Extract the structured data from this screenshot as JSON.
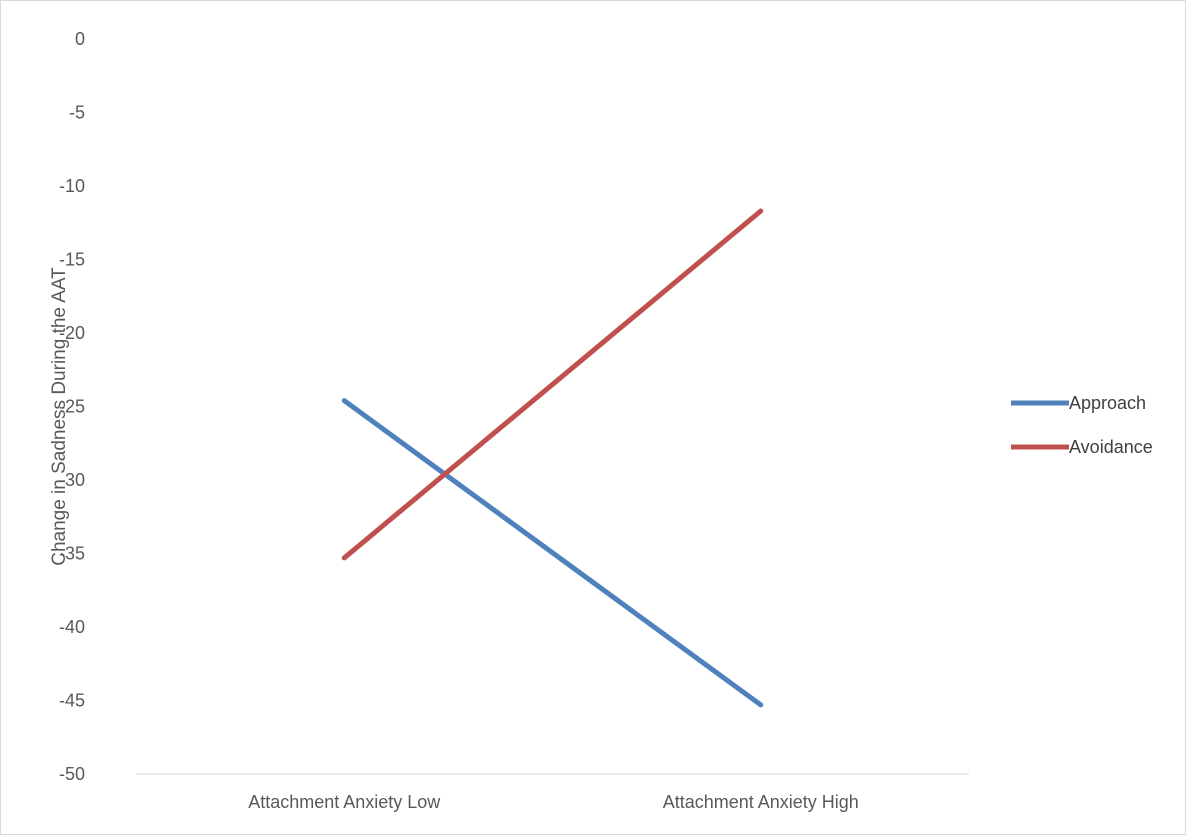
{
  "chart_data": {
    "type": "line",
    "categories": [
      "Attachment Anxiety Low",
      "Attachment Anxiety High"
    ],
    "series": [
      {
        "name": "Approach",
        "values": [
          -24.6,
          -45.3
        ],
        "color": "#4f81bd"
      },
      {
        "name": "Avoidance",
        "values": [
          -35.3,
          -11.7
        ],
        "color": "#c0504d"
      }
    ],
    "title": "",
    "xlabel": "",
    "ylabel": "Change in Sadness During the AAT",
    "ylim": [
      -50,
      0
    ],
    "yticks": [
      0,
      -5,
      -10,
      -15,
      -20,
      -25,
      -30,
      -35,
      -40,
      -45,
      -50
    ],
    "grid": false,
    "legend_position": "right",
    "axis_color": "#d9d9d9"
  }
}
